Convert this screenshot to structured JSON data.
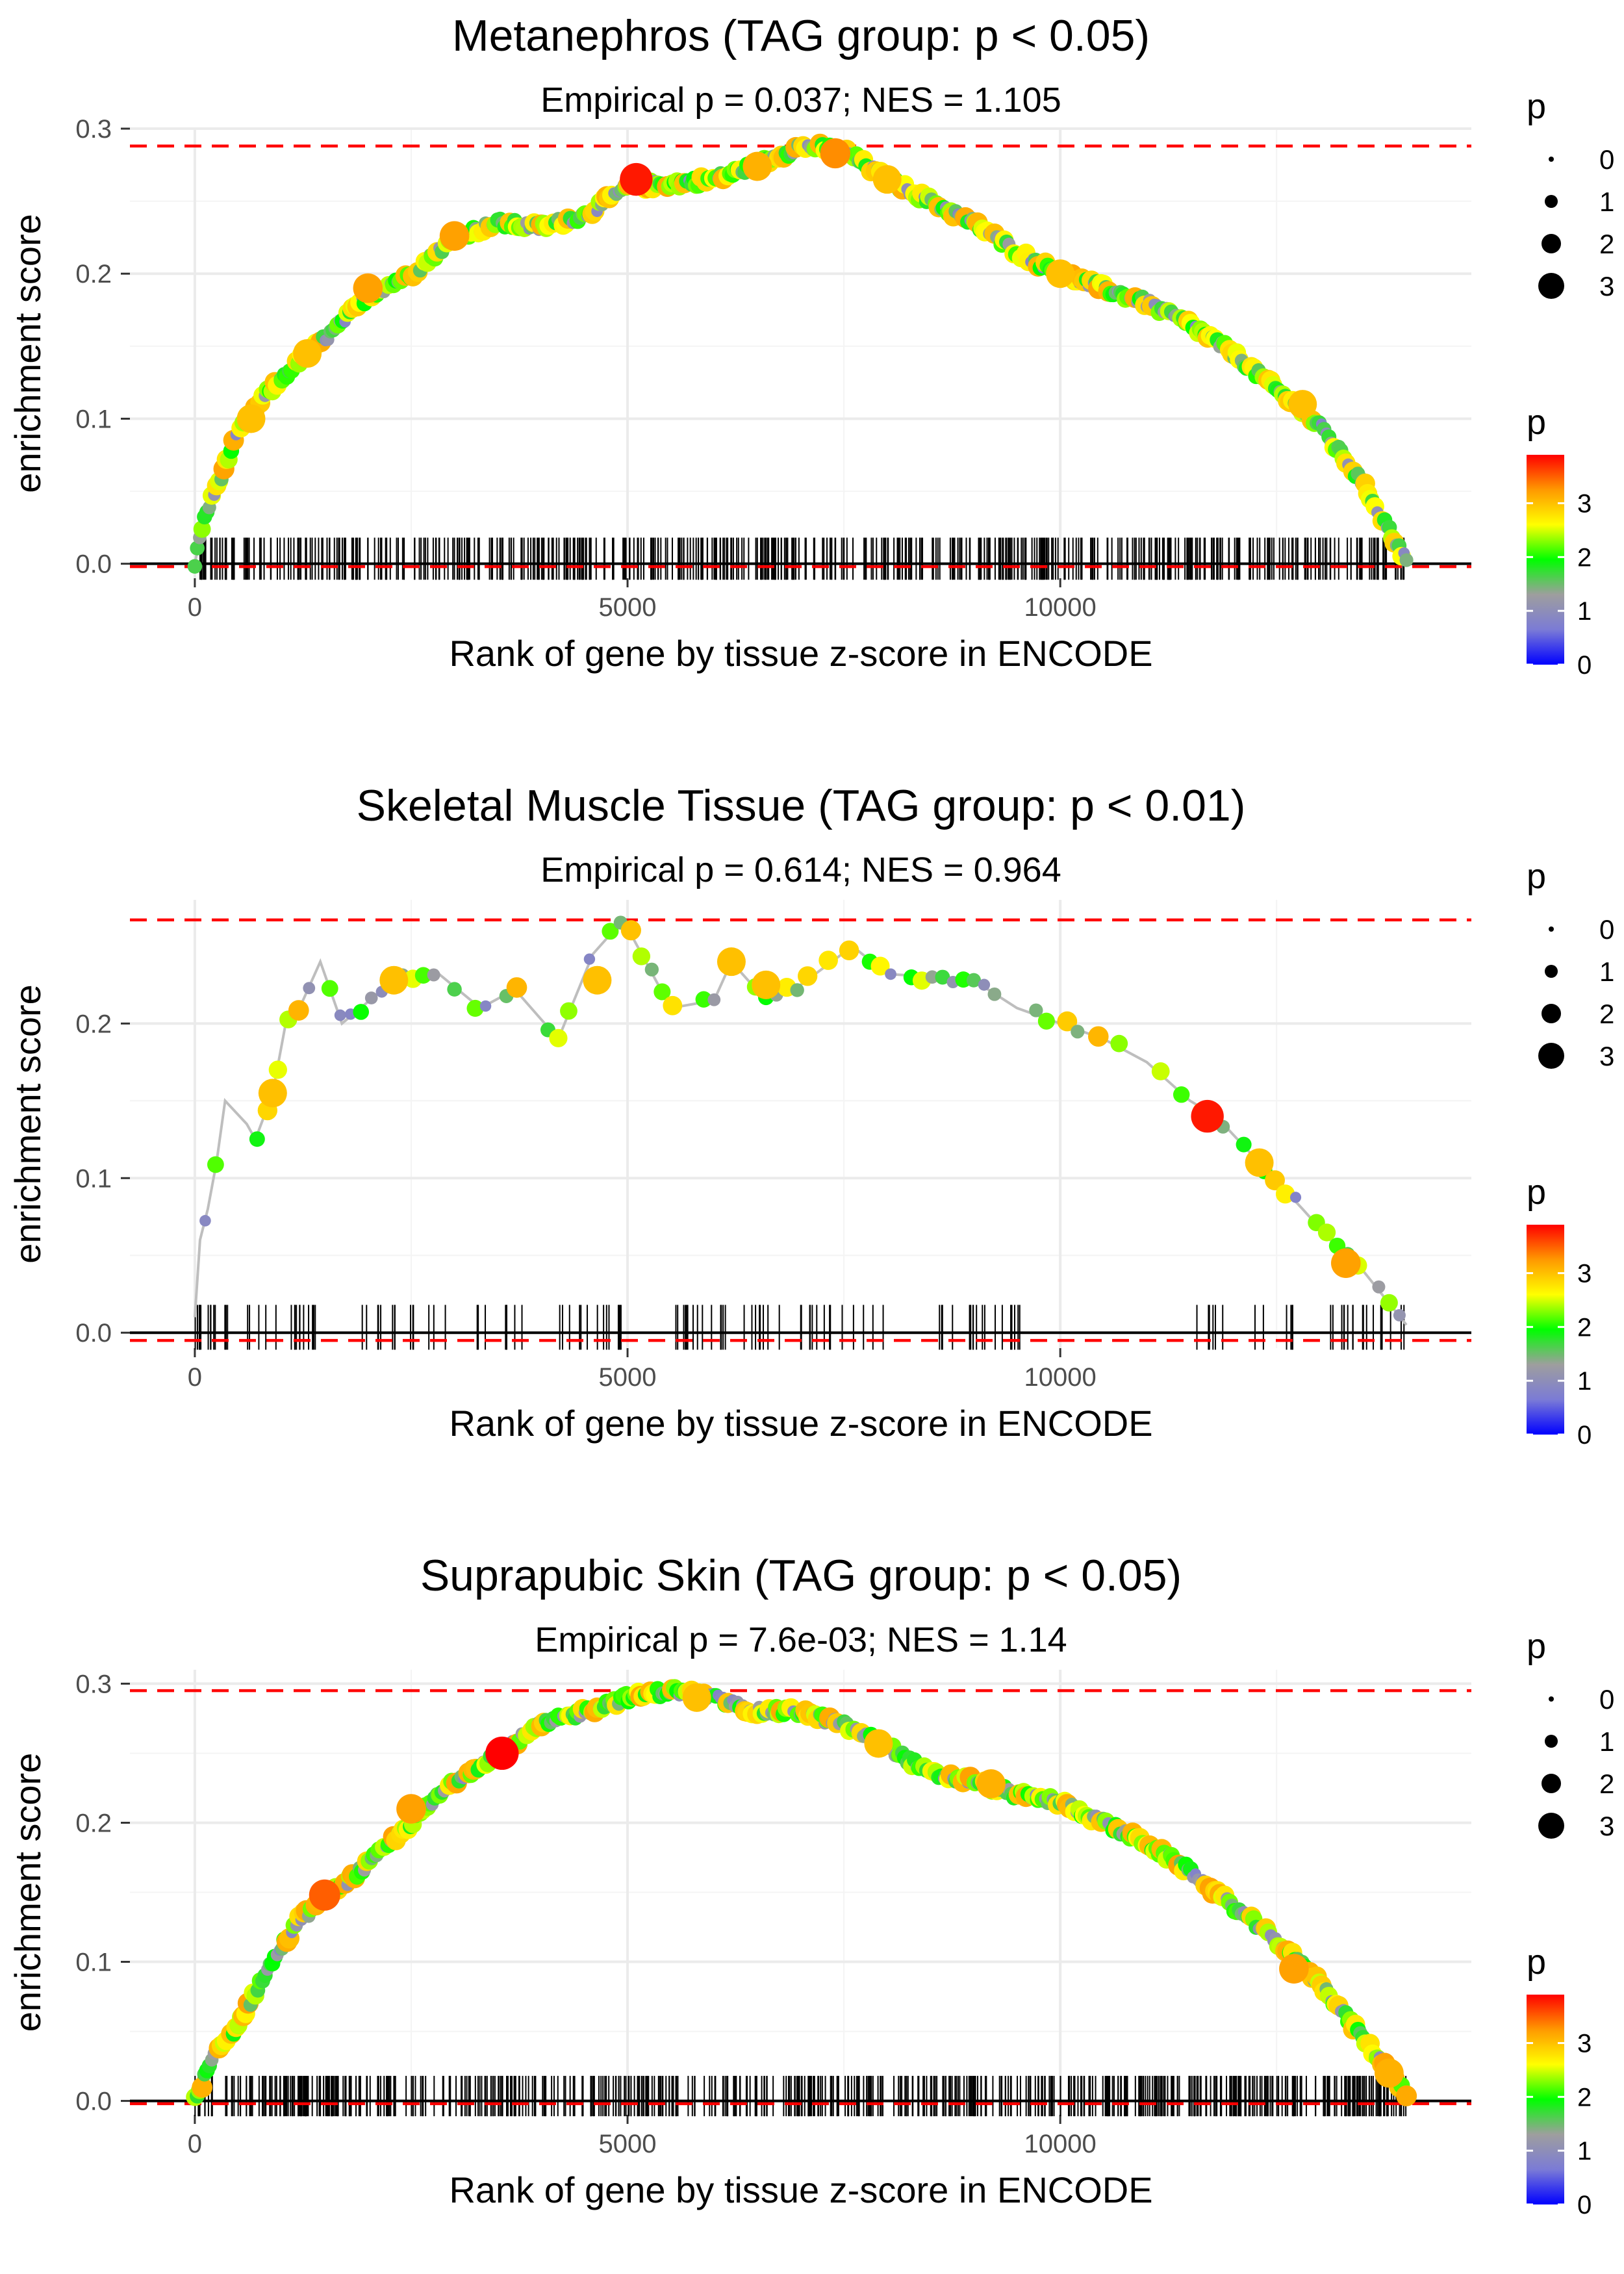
{
  "chart_data": [
    {
      "type": "line",
      "title": "Metanephros (TAG group: p < 0.05)",
      "subtitle": "Empirical p = 0.037; NES = 1.105",
      "xlabel": "Rank of gene by tissue z-score in ENCODE",
      "ylabel": "enrichment score",
      "xlim": [
        -750,
        14750
      ],
      "ylim": [
        -0.01,
        0.3
      ],
      "x_ticks": [
        0,
        5000,
        10000
      ],
      "y_ticks": [
        0.0,
        0.1,
        0.2,
        0.3
      ],
      "x_tick_labels": [
        "0",
        "5000",
        "10000"
      ],
      "y_tick_labels": [
        "0.0",
        "0.1",
        "0.2",
        "0.3"
      ],
      "max_es": 0.288,
      "min_es": -0.002,
      "n_genes": 14000,
      "n_hits": 560,
      "curve": [
        [
          0,
          0
        ],
        [
          100,
          0.03
        ],
        [
          300,
          0.06
        ],
        [
          500,
          0.09
        ],
        [
          800,
          0.115
        ],
        [
          1200,
          0.14
        ],
        [
          1600,
          0.16
        ],
        [
          2000,
          0.185
        ],
        [
          2500,
          0.2
        ],
        [
          3000,
          0.225
        ],
        [
          3500,
          0.235
        ],
        [
          4000,
          0.232
        ],
        [
          4500,
          0.24
        ],
        [
          5000,
          0.26
        ],
        [
          5500,
          0.262
        ],
        [
          6000,
          0.265
        ],
        [
          6500,
          0.275
        ],
        [
          7000,
          0.288
        ],
        [
          7500,
          0.285
        ],
        [
          8000,
          0.265
        ],
        [
          8500,
          0.25
        ],
        [
          9000,
          0.235
        ],
        [
          9500,
          0.215
        ],
        [
          10000,
          0.2
        ],
        [
          10500,
          0.19
        ],
        [
          11000,
          0.18
        ],
        [
          11500,
          0.165
        ],
        [
          12000,
          0.145
        ],
        [
          12500,
          0.12
        ],
        [
          13000,
          0.095
        ],
        [
          13500,
          0.055
        ],
        [
          14000,
          0.002
        ]
      ],
      "highlights": [
        [
          5100,
          0.265,
          3.8
        ],
        [
          3000,
          0.226,
          3.2
        ],
        [
          2000,
          0.19,
          3.2
        ],
        [
          650,
          0.1,
          3.0
        ],
        [
          8000,
          0.265,
          3.0
        ],
        [
          10000,
          0.2,
          3.0
        ],
        [
          6500,
          0.274,
          3.1
        ],
        [
          12800,
          0.11,
          3.0
        ],
        [
          7400,
          0.283,
          3.3
        ],
        [
          1300,
          0.145,
          3.0
        ]
      ]
    },
    {
      "type": "line",
      "title": "Skeletal Muscle Tissue (TAG group: p < 0.01)",
      "subtitle": "Empirical p = 0.614; NES = 0.964",
      "xlabel": "Rank of gene by tissue z-score in ENCODE",
      "ylabel": "enrichment score",
      "xlim": [
        -750,
        14750
      ],
      "ylim": [
        -0.01,
        0.28
      ],
      "x_ticks": [
        0,
        5000,
        10000
      ],
      "y_ticks": [
        0.0,
        0.1,
        0.2
      ],
      "x_tick_labels": [
        "0",
        "5000",
        "10000"
      ],
      "y_tick_labels": [
        "0.0",
        "0.1",
        "0.2"
      ],
      "max_es": 0.267,
      "min_es": -0.005,
      "n_genes": 14000,
      "n_hits": 150,
      "curve": [
        [
          0,
          0.01
        ],
        [
          60,
          0.06
        ],
        [
          150,
          0.08
        ],
        [
          250,
          0.11
        ],
        [
          350,
          0.15
        ],
        [
          600,
          0.135
        ],
        [
          700,
          0.125
        ],
        [
          900,
          0.155
        ],
        [
          1050,
          0.2
        ],
        [
          1250,
          0.215
        ],
        [
          1450,
          0.24
        ],
        [
          1700,
          0.2
        ],
        [
          2300,
          0.228
        ],
        [
          2800,
          0.233
        ],
        [
          3300,
          0.21
        ],
        [
          3700,
          0.222
        ],
        [
          4200,
          0.19
        ],
        [
          4600,
          0.245
        ],
        [
          4950,
          0.267
        ],
        [
          5500,
          0.21
        ],
        [
          6000,
          0.215
        ],
        [
          6200,
          0.24
        ],
        [
          6600,
          0.215
        ],
        [
          7000,
          0.225
        ],
        [
          7600,
          0.25
        ],
        [
          8000,
          0.232
        ],
        [
          8600,
          0.23
        ],
        [
          9000,
          0.228
        ],
        [
          9500,
          0.21
        ],
        [
          10000,
          0.2
        ],
        [
          10500,
          0.19
        ],
        [
          11000,
          0.175
        ],
        [
          11500,
          0.15
        ],
        [
          11800,
          0.14
        ],
        [
          12300,
          0.11
        ],
        [
          12800,
          0.08
        ],
        [
          13200,
          0.055
        ],
        [
          13500,
          0.04
        ],
        [
          14000,
          0.005
        ]
      ],
      "highlights": [
        [
          11700,
          0.14,
          3.8
        ],
        [
          2300,
          0.228,
          3.0
        ],
        [
          6600,
          0.225,
          3.0
        ],
        [
          13300,
          0.045,
          3.2
        ],
        [
          12300,
          0.11,
          3.0
        ],
        [
          4650,
          0.228,
          3.0
        ],
        [
          6200,
          0.24,
          3.0
        ],
        [
          900,
          0.155,
          3.0
        ]
      ]
    },
    {
      "type": "line",
      "title": "Suprapubic Skin (TAG group: p < 0.05)",
      "subtitle": "Empirical p = 7.6e-03; NES = 1.14",
      "xlabel": "Rank of gene by tissue z-score in ENCODE",
      "ylabel": "enrichment score",
      "xlim": [
        -750,
        14750
      ],
      "ylim": [
        -0.01,
        0.31
      ],
      "x_ticks": [
        0,
        5000,
        10000
      ],
      "y_ticks": [
        0.0,
        0.1,
        0.2,
        0.3
      ],
      "x_tick_labels": [
        "0",
        "5000",
        "10000"
      ],
      "y_tick_labels": [
        "0.0",
        "0.1",
        "0.2",
        "0.3"
      ],
      "max_es": 0.295,
      "min_es": -0.002,
      "n_genes": 14000,
      "n_hits": 620,
      "curve": [
        [
          0,
          0
        ],
        [
          200,
          0.03
        ],
        [
          500,
          0.055
        ],
        [
          800,
          0.09
        ],
        [
          1200,
          0.13
        ],
        [
          1600,
          0.15
        ],
        [
          2000,
          0.17
        ],
        [
          2500,
          0.2
        ],
        [
          3000,
          0.23
        ],
        [
          3500,
          0.25
        ],
        [
          4000,
          0.27
        ],
        [
          4500,
          0.28
        ],
        [
          5000,
          0.29
        ],
        [
          5500,
          0.295
        ],
        [
          6000,
          0.29
        ],
        [
          6500,
          0.28
        ],
        [
          7000,
          0.28
        ],
        [
          7500,
          0.27
        ],
        [
          8000,
          0.255
        ],
        [
          8500,
          0.235
        ],
        [
          9000,
          0.23
        ],
        [
          9500,
          0.22
        ],
        [
          10000,
          0.215
        ],
        [
          10500,
          0.2
        ],
        [
          11000,
          0.185
        ],
        [
          11500,
          0.165
        ],
        [
          12000,
          0.14
        ],
        [
          12500,
          0.115
        ],
        [
          13000,
          0.085
        ],
        [
          13500,
          0.045
        ],
        [
          14000,
          0.005
        ]
      ],
      "highlights": [
        [
          3550,
          0.25,
          3.9
        ],
        [
          1500,
          0.148,
          3.5
        ],
        [
          2500,
          0.21,
          3.2
        ],
        [
          7900,
          0.257,
          3.0
        ],
        [
          12700,
          0.095,
          3.2
        ],
        [
          13800,
          0.02,
          3.1
        ],
        [
          9200,
          0.228,
          3.1
        ],
        [
          5800,
          0.29,
          3.0
        ]
      ]
    }
  ],
  "legend": {
    "size_title": "p",
    "size_labels": [
      "0",
      "1",
      "2",
      "3"
    ],
    "color_title": "p",
    "color_labels": [
      "3",
      "2",
      "1",
      "0"
    ],
    "color_stops": [
      "#0000ff",
      "#7b7bd6",
      "#9e9e9e",
      "#00ff00",
      "#ffff00",
      "#ff9900",
      "#ff0000"
    ]
  },
  "colors": {
    "dashed_line": "#ff0000",
    "grid": "#ebebeb",
    "curve_line": "#bebebe",
    "baseline": "#000000",
    "rug": "#000000"
  }
}
